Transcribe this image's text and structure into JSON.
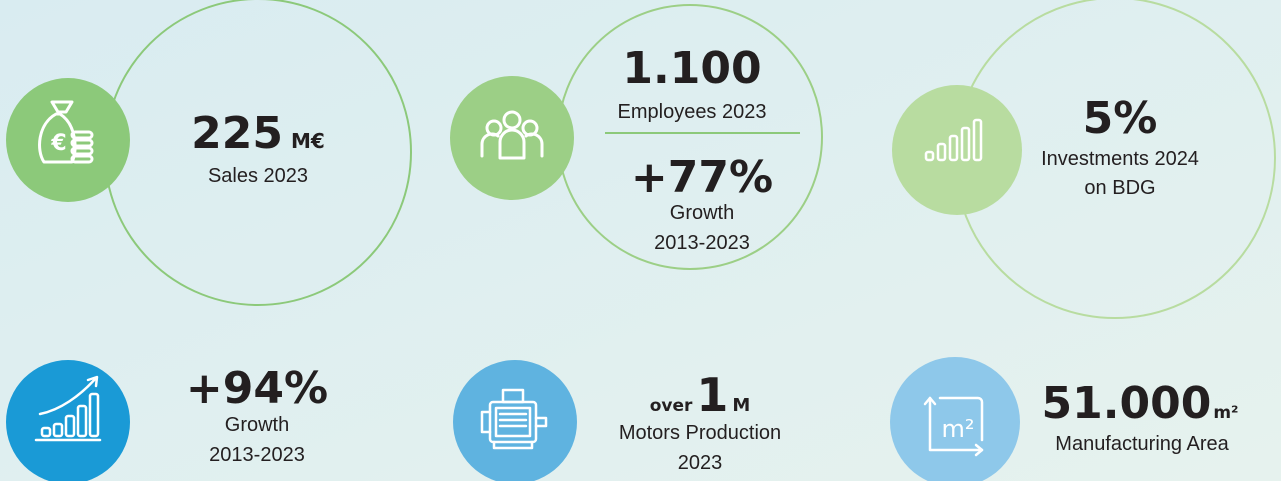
{
  "stats": [
    {
      "value": "225",
      "unit": "M€",
      "label": "Sales 2023"
    },
    {
      "value": "1.100",
      "label": "Employees 2023",
      "sub_value": "+77%",
      "sub_label": [
        "Growth",
        "2013-2023"
      ]
    },
    {
      "value": "5%",
      "label": [
        "Investments 2024",
        "on BDG"
      ]
    },
    {
      "value": "+94%",
      "label": [
        "Growth",
        "2013-2023"
      ]
    },
    {
      "prefix": "over",
      "value": "1",
      "unit": "M",
      "label": [
        "Motors Production",
        "2023"
      ]
    },
    {
      "value": "51.000",
      "unit": "m²",
      "label": "Manufacturing Area"
    }
  ],
  "icons": {
    "euro": "€",
    "area": "m²"
  }
}
